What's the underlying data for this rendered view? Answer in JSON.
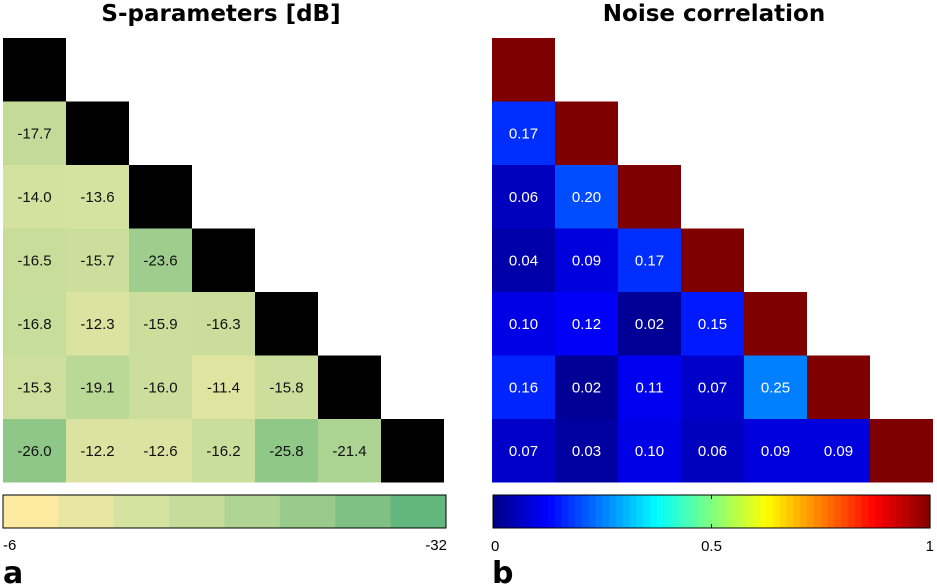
{
  "chart_data": [
    {
      "type": "heatmap",
      "panel_label": "a",
      "title": "S-parameters [dB]",
      "matrix_shape": "lower-triangular",
      "size": 7,
      "diagonal_color": "#000000",
      "rows": [
        [],
        [
          -17.7
        ],
        [
          -14.0,
          -13.6
        ],
        [
          -16.5,
          -15.7,
          -23.6
        ],
        [
          -16.8,
          -12.3,
          -15.9,
          -16.3
        ],
        [
          -15.3,
          -19.1,
          -16.0,
          -11.4,
          -15.8
        ],
        [
          -26.0,
          -12.2,
          -12.6,
          -16.2,
          -25.8,
          -21.4
        ]
      ],
      "labels": [
        [],
        [
          "-17.7"
        ],
        [
          "-14.0",
          "-13.6"
        ],
        [
          "-16.5",
          "-15.7",
          "-23.6"
        ],
        [
          "-16.8",
          "-12.3",
          "-15.9",
          "-16.3"
        ],
        [
          "-15.3",
          "-19.1",
          "-16.0",
          "-11.4",
          "-15.8"
        ],
        [
          "-26.0",
          "-12.2",
          "-12.6",
          "-16.2",
          "-25.8",
          "-21.4"
        ]
      ],
      "label_color": "#111111",
      "colorbar": {
        "min": -6,
        "max": -32,
        "tick_labels": [
          "-6",
          "-32"
        ],
        "steps": [
          "#fde9a0",
          "#e8e6a2",
          "#d6e2a0",
          "#c6dc9a",
          "#b0d493",
          "#98cb8b",
          "#80c183",
          "#62b77e"
        ]
      }
    },
    {
      "type": "heatmap",
      "panel_label": "b",
      "title": "Noise correlation",
      "matrix_shape": "lower-triangular",
      "size": 7,
      "diagonal_color": "#7f0000",
      "rows": [
        [],
        [
          0.17
        ],
        [
          0.06,
          0.2
        ],
        [
          0.04,
          0.09,
          0.17
        ],
        [
          0.1,
          0.12,
          0.02,
          0.15
        ],
        [
          0.16,
          0.02,
          0.11,
          0.07,
          0.25
        ],
        [
          0.07,
          0.03,
          0.1,
          0.06,
          0.09,
          0.09
        ]
      ],
      "labels": [
        [],
        [
          "0.17"
        ],
        [
          "0.06",
          "0.20"
        ],
        [
          "0.04",
          "0.09",
          "0.17"
        ],
        [
          "0.10",
          "0.12",
          "0.02",
          "0.15"
        ],
        [
          "0.16",
          "0.02",
          "0.11",
          "0.07",
          "0.25"
        ],
        [
          "0.07",
          "0.03",
          "0.10",
          "0.06",
          "0.09",
          "0.09"
        ]
      ],
      "label_color": "#ffffff",
      "colorbar": {
        "min": 0,
        "max": 1,
        "colormap": "jet",
        "tick_values": [
          0,
          0.5,
          1
        ],
        "tick_labels": [
          "0",
          "0.5",
          "1"
        ]
      }
    }
  ]
}
